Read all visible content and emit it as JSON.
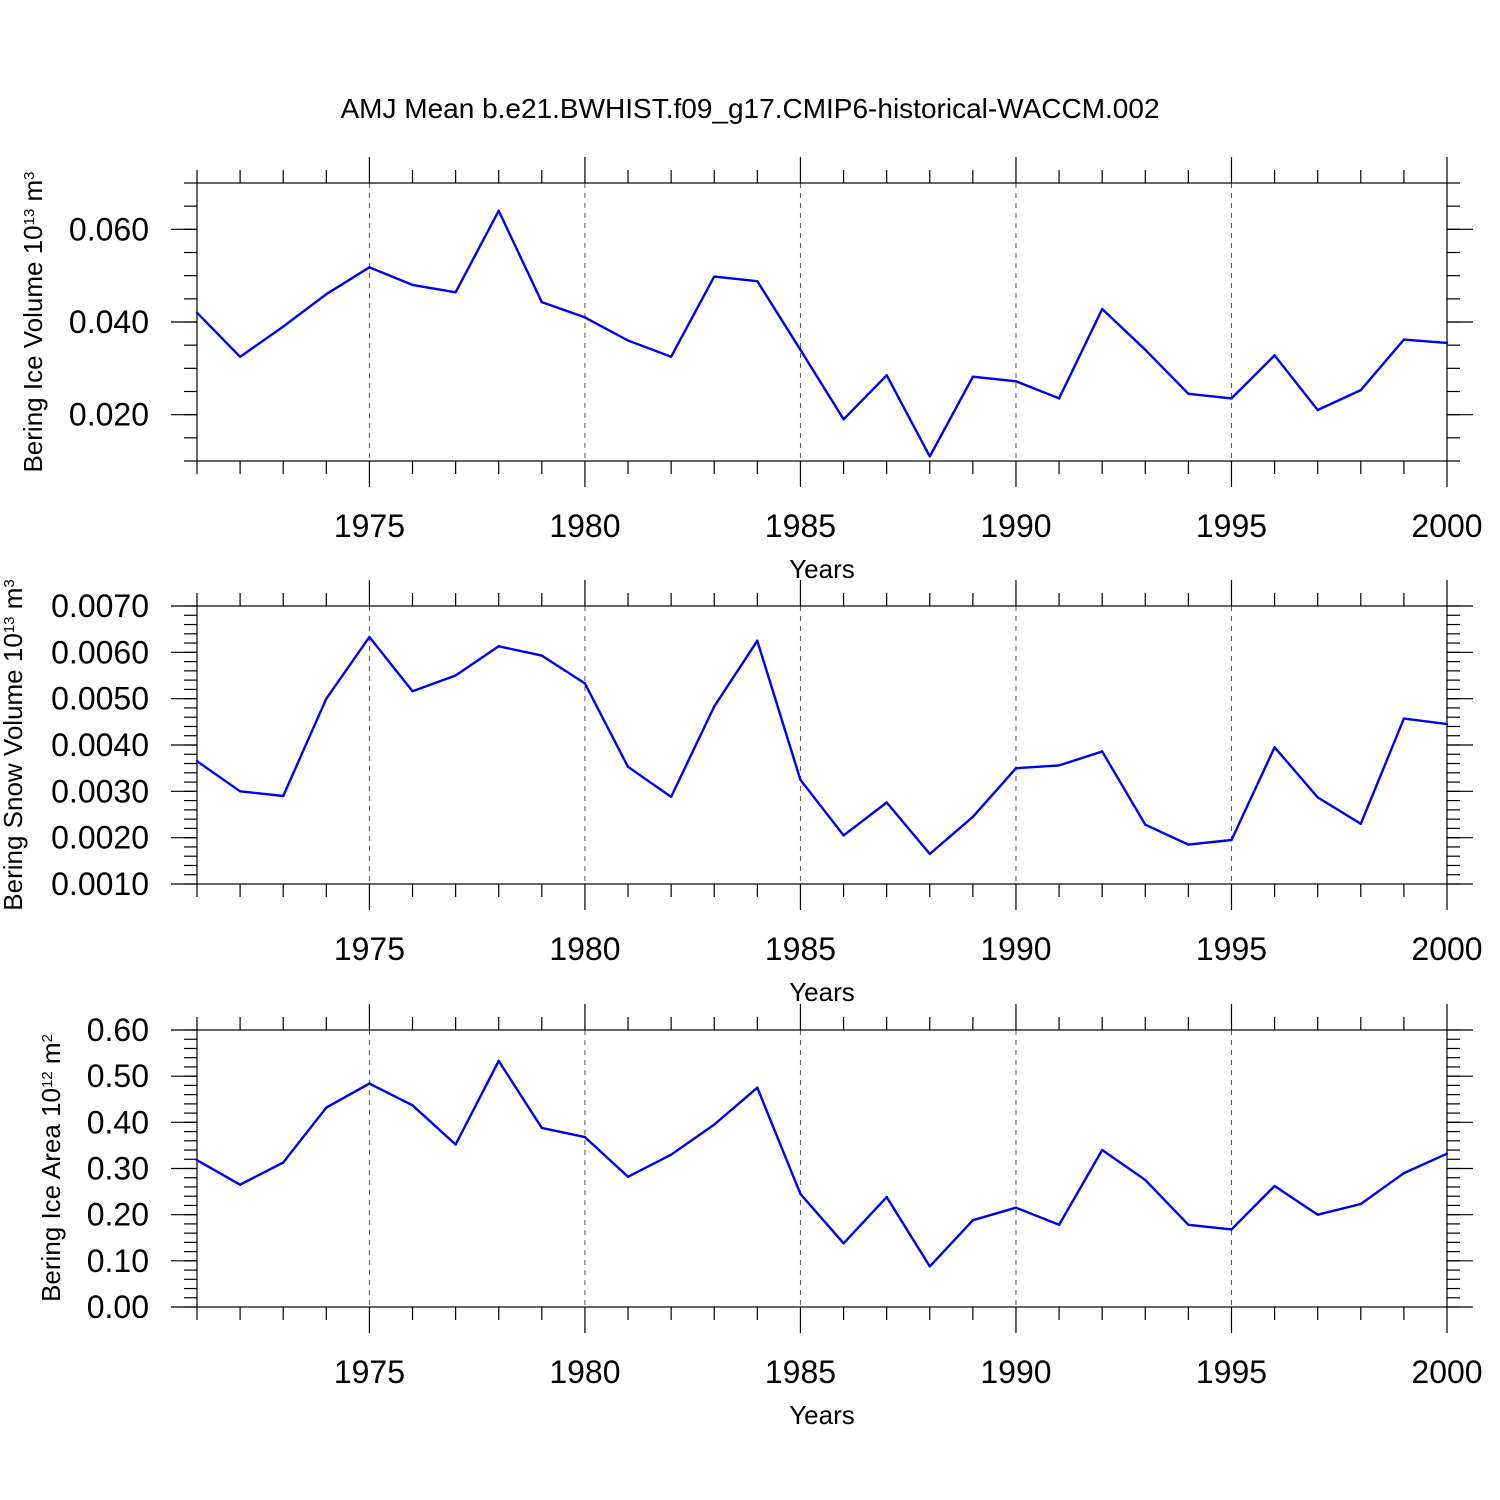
{
  "title": "AMJ Mean b.e21.BWHIST.f09_g17.CMIP6-historical-WACCM.002",
  "colors": {
    "line": "#0000ee",
    "grid": "#555555"
  },
  "chart_data": [
    {
      "type": "line",
      "ylabel": {
        "prefix": "Bering Ice Volume 10",
        "exp": "13",
        "unit": " m",
        "unit_exp": "3"
      },
      "xlabel": "Years",
      "xlim": [
        1971,
        2000
      ],
      "ylim": [
        0.01,
        0.07
      ],
      "x_ticks": [
        1975,
        1980,
        1985,
        1990,
        1995,
        2000
      ],
      "x_tick_labels": [
        "1975",
        "1980",
        "1985",
        "1990",
        "1995",
        "2000"
      ],
      "y_ticks": [
        0.02,
        0.04,
        0.06
      ],
      "y_tick_labels": [
        "0.020",
        "0.040",
        "0.060"
      ],
      "y_minor_step": 0.005,
      "grid": "x-dashed",
      "x": [
        1971,
        1972,
        1973,
        1974,
        1975,
        1976,
        1977,
        1978,
        1979,
        1980,
        1981,
        1982,
        1983,
        1984,
        1985,
        1986,
        1987,
        1988,
        1989,
        1990,
        1991,
        1992,
        1993,
        1994,
        1995,
        1996,
        1997,
        1998,
        1999,
        2000
      ],
      "values": [
        0.042,
        0.0325,
        0.039,
        0.046,
        0.0518,
        0.048,
        0.0464,
        0.064,
        0.0443,
        0.041,
        0.036,
        0.0325,
        0.0498,
        0.0488,
        0.034,
        0.019,
        0.0285,
        0.011,
        0.0282,
        0.0272,
        0.0235,
        0.0428,
        0.034,
        0.0245,
        0.0235,
        0.0328,
        0.021,
        0.0253,
        0.0362,
        0.0355
      ]
    },
    {
      "type": "line",
      "ylabel": {
        "prefix": "Bering Snow Volume 10",
        "exp": "13",
        "unit": " m",
        "unit_exp": "3"
      },
      "xlabel": "Years",
      "xlim": [
        1971,
        2000
      ],
      "ylim": [
        0.001,
        0.007
      ],
      "x_ticks": [
        1975,
        1980,
        1985,
        1990,
        1995,
        2000
      ],
      "x_tick_labels": [
        "1975",
        "1980",
        "1985",
        "1990",
        "1995",
        "2000"
      ],
      "y_ticks": [
        0.001,
        0.002,
        0.003,
        0.004,
        0.005,
        0.006,
        0.007
      ],
      "y_tick_labels": [
        "0.0010",
        "0.0020",
        "0.0030",
        "0.0040",
        "0.0050",
        "0.0060",
        "0.0070"
      ],
      "y_minor_step": 0.0002,
      "grid": "x-dashed",
      "x": [
        1971,
        1972,
        1973,
        1974,
        1975,
        1976,
        1977,
        1978,
        1979,
        1980,
        1981,
        1982,
        1983,
        1984,
        1985,
        1986,
        1987,
        1988,
        1989,
        1990,
        1991,
        1992,
        1993,
        1994,
        1995,
        1996,
        1997,
        1998,
        1999,
        2000
      ],
      "values": [
        0.00365,
        0.003,
        0.0029,
        0.005,
        0.00633,
        0.00516,
        0.0055,
        0.00613,
        0.00593,
        0.00533,
        0.00353,
        0.00288,
        0.00483,
        0.00625,
        0.00325,
        0.00205,
        0.00276,
        0.00165,
        0.00245,
        0.0035,
        0.00356,
        0.00386,
        0.00228,
        0.00185,
        0.00195,
        0.00395,
        0.00287,
        0.0023,
        0.00457,
        0.00445
      ]
    },
    {
      "type": "line",
      "ylabel": {
        "prefix": "Bering Ice Area 10",
        "exp": "12",
        "unit": " m",
        "unit_exp": "2"
      },
      "xlabel": "Years",
      "xlim": [
        1971,
        2000
      ],
      "ylim": [
        0.0,
        0.6
      ],
      "x_ticks": [
        1975,
        1980,
        1985,
        1990,
        1995,
        2000
      ],
      "x_tick_labels": [
        "1975",
        "1980",
        "1985",
        "1990",
        "1995",
        "2000"
      ],
      "y_ticks": [
        0.0,
        0.1,
        0.2,
        0.3,
        0.4,
        0.5,
        0.6
      ],
      "y_tick_labels": [
        "0.00",
        "0.10",
        "0.20",
        "0.30",
        "0.40",
        "0.50",
        "0.60"
      ],
      "y_minor_step": 0.02,
      "grid": "x-dashed",
      "x": [
        1971,
        1972,
        1973,
        1974,
        1975,
        1976,
        1977,
        1978,
        1979,
        1980,
        1981,
        1982,
        1983,
        1984,
        1985,
        1986,
        1987,
        1988,
        1989,
        1990,
        1991,
        1992,
        1993,
        1994,
        1995,
        1996,
        1997,
        1998,
        1999,
        2000
      ],
      "values": [
        0.318,
        0.265,
        0.313,
        0.432,
        0.484,
        0.437,
        0.352,
        0.533,
        0.388,
        0.368,
        0.282,
        0.33,
        0.395,
        0.475,
        0.245,
        0.138,
        0.238,
        0.088,
        0.188,
        0.215,
        0.178,
        0.34,
        0.275,
        0.178,
        0.168,
        0.262,
        0.2,
        0.223,
        0.29,
        0.332
      ]
    }
  ]
}
